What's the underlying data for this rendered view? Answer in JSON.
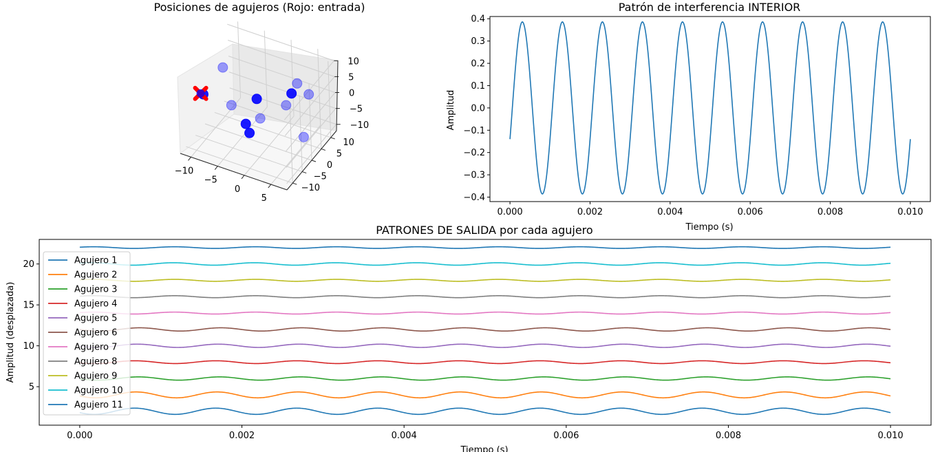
{
  "chart_data": [
    {
      "id": "holes3d",
      "type": "scatter3d",
      "title": "Posiciones de agujeros (Rojo: entrada)",
      "xlim": [
        -12,
        8
      ],
      "ylim": [
        -13,
        13
      ],
      "zlim": [
        -12,
        12
      ],
      "x_ticks": [
        -10,
        -5,
        0,
        5
      ],
      "y_ticks": [
        -10,
        -5,
        0,
        5,
        10
      ],
      "z_ticks": [
        -10,
        -5,
        0,
        5,
        10
      ],
      "entry_color": "#ff0000",
      "point_color": "#0000ff",
      "entry_point": {
        "x": -11.5,
        "y": -3,
        "z": 0
      },
      "points": [
        {
          "x": -11,
          "y": -3,
          "z": 0
        },
        {
          "x": -9,
          "y": 2,
          "z": 6
        },
        {
          "x": 1,
          "y": -8,
          "z": 9
        },
        {
          "x": 5,
          "y": -1,
          "z": 8
        },
        {
          "x": 5,
          "y": 2,
          "z": 9
        },
        {
          "x": 6,
          "y": 5,
          "z": 4
        },
        {
          "x": 2,
          "y": 4,
          "z": -1
        },
        {
          "x": -2,
          "y": -6,
          "z": -2
        },
        {
          "x": -8,
          "y": 3,
          "z": -6
        },
        {
          "x": -3,
          "y": 4,
          "z": -8
        },
        {
          "x": -4,
          "y": 1,
          "z": -11
        },
        {
          "x": 4,
          "y": 7,
          "z": -12
        }
      ]
    },
    {
      "id": "interior",
      "type": "line",
      "title": "Patrón de interferencia INTERIOR",
      "xlabel": "Tiempo (s)",
      "ylabel": "Amplitud",
      "xlim": [
        -0.0005,
        0.0105
      ],
      "ylim": [
        -0.42,
        0.41
      ],
      "x_ticks": [
        "0.000",
        "0.002",
        "0.004",
        "0.006",
        "0.008",
        "0.010"
      ],
      "y_ticks": [
        "-0.4",
        "-0.3",
        "-0.2",
        "-0.1",
        "0.0",
        "0.1",
        "0.2",
        "0.3",
        "0.4"
      ],
      "color": "#1f77b4",
      "series": [
        {
          "amplitude": 0.3857,
          "frequency_hz": 1000,
          "t_start": 0,
          "t_end": 0.01,
          "y_at_start": -0.14
        }
      ]
    },
    {
      "id": "salida",
      "type": "line",
      "title": "PATRONES DE SALIDA por cada agujero",
      "xlabel": "Tiempo (s)",
      "ylabel": "Amplitud (desplazada)",
      "xlim": [
        -0.0005,
        0.0105
      ],
      "ylim": [
        0.3,
        23
      ],
      "x_ticks": [
        "0.000",
        "0.002",
        "0.004",
        "0.006",
        "0.008",
        "0.010"
      ],
      "y_ticks": [
        "5",
        "10",
        "15",
        "20"
      ],
      "legend_position": "upper-left",
      "series": [
        {
          "name": "Agujero 1",
          "color": "#1f77b4",
          "offset": 2.0,
          "amplitude": 0.38,
          "frequency_hz": 1000,
          "phase": 3.6
        },
        {
          "name": "Agujero 2",
          "color": "#ff7f0e",
          "offset": 4.0,
          "amplitude": 0.36,
          "frequency_hz": 1000,
          "phase": 3.5
        },
        {
          "name": "Agujero 3",
          "color": "#2ca02c",
          "offset": 6.0,
          "amplitude": 0.2,
          "frequency_hz": 1000,
          "phase": 3.3
        },
        {
          "name": "Agujero 4",
          "color": "#d62728",
          "offset": 8.0,
          "amplitude": 0.17,
          "frequency_hz": 1000,
          "phase": 3.6
        },
        {
          "name": "Agujero 5",
          "color": "#9467bd",
          "offset": 10.0,
          "amplitude": 0.2,
          "frequency_hz": 1000,
          "phase": 3.4
        },
        {
          "name": "Agujero 6",
          "color": "#8c564b",
          "offset": 12.0,
          "amplitude": 0.2,
          "frequency_hz": 1000,
          "phase": 3.2
        },
        {
          "name": "Agujero 7",
          "color": "#e377c2",
          "offset": 14.0,
          "amplitude": 0.12,
          "frequency_hz": 1000,
          "phase": 0.5
        },
        {
          "name": "Agujero 8",
          "color": "#7f7f7f",
          "offset": 16.0,
          "amplitude": 0.12,
          "frequency_hz": 1000,
          "phase": 0.5
        },
        {
          "name": "Agujero 9",
          "color": "#bcbd22",
          "offset": 18.0,
          "amplitude": 0.12,
          "frequency_hz": 1000,
          "phase": 0.5
        },
        {
          "name": "Agujero 10",
          "color": "#17becf",
          "offset": 20.0,
          "amplitude": 0.15,
          "frequency_hz": 1000,
          "phase": 0.6
        },
        {
          "name": "Agujero 11",
          "color": "#1f77b4",
          "offset": 22.0,
          "amplitude": 0.1,
          "frequency_hz": 1000,
          "phase": 0.5
        }
      ]
    }
  ]
}
